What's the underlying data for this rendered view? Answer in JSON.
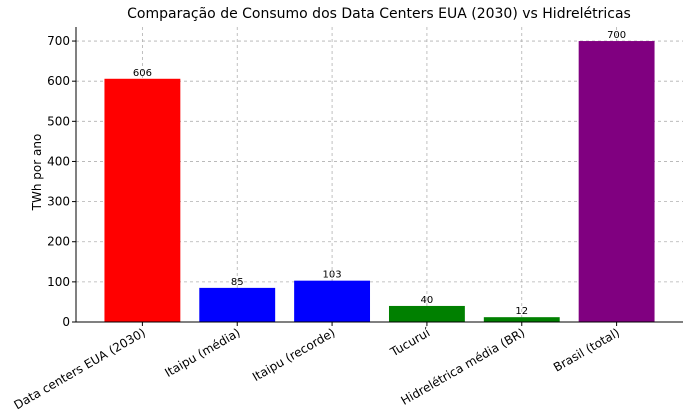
{
  "chart_data": {
    "type": "bar",
    "title": "Comparação de Consumo dos Data Centers EUA (2030) vs Hidrelétricas",
    "xlabel": "",
    "ylabel": "TWh por ano",
    "categories": [
      "Data centers EUA (2030)",
      "Itaipu (média)",
      "Itaipu (recorde)",
      "Tucuruí",
      "Hidrelétrica média (BR)",
      "Brasil (total)"
    ],
    "values": [
      606,
      85,
      103,
      40,
      12,
      700
    ],
    "data_labels": [
      "606",
      "85",
      "103",
      "40",
      "12",
      "700"
    ],
    "colors": [
      "#ff0000",
      "#0000ff",
      "#0000ff",
      "#008000",
      "#008000",
      "#800080"
    ],
    "ylim": [
      0,
      735
    ],
    "yticks": [
      0,
      100,
      200,
      300,
      400,
      500,
      600,
      700
    ],
    "grid": true,
    "legend": "none"
  }
}
